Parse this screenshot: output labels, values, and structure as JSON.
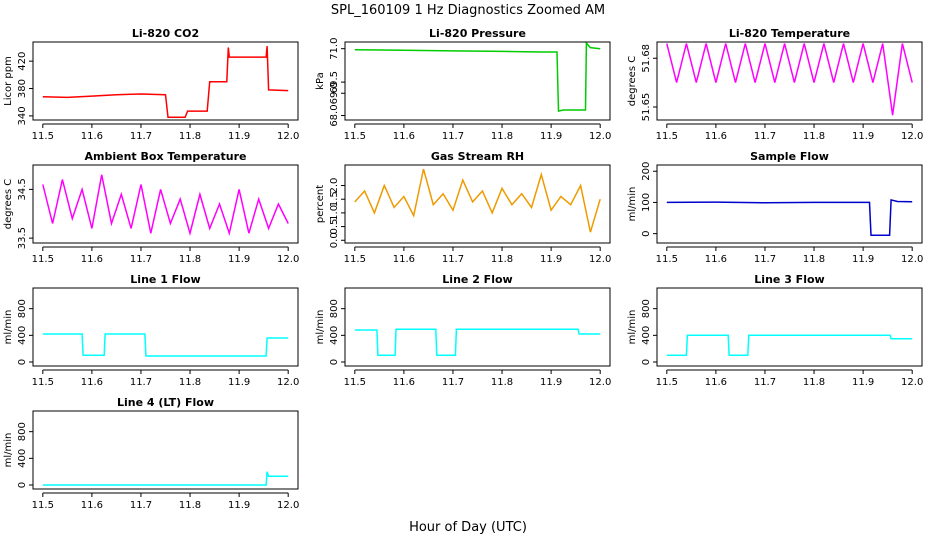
{
  "title": "SPL_160109  1 Hz Diagnostics Zoomed AM",
  "xlabel": "Hour of Day (UTC)",
  "chart_data": [
    {
      "type": "line",
      "title": "Li-820 CO2",
      "ylabel": "Licor ppm",
      "xlim": [
        11.48,
        12.02
      ],
      "xticks": [
        11.5,
        11.6,
        11.7,
        11.8,
        11.9,
        {
          "value": 12,
          "label": "12.0"
        }
      ],
      "ylim": [
        334,
        448
      ],
      "yticks": [
        340,
        380,
        420
      ],
      "series": [
        {
          "color": "#ff0000",
          "x": [
            11.5,
            11.55,
            11.6,
            11.65,
            11.7,
            11.75,
            11.755,
            11.79,
            11.795,
            11.835,
            11.84,
            11.875,
            11.878,
            11.88,
            11.955,
            11.957,
            11.96,
            12.0
          ],
          "values": [
            368,
            367,
            369,
            371,
            372,
            371,
            338,
            338,
            347,
            347,
            390,
            390,
            440,
            426,
            426,
            442,
            378,
            377
          ]
        }
      ]
    },
    {
      "type": "line",
      "title": "Li-820 Pressure",
      "ylabel": "kPa",
      "xlim": [
        11.48,
        12.02
      ],
      "xticks": [
        11.5,
        11.6,
        11.7,
        11.8,
        11.9,
        {
          "value": 12,
          "label": "12.0"
        }
      ],
      "ylim": [
        67.8,
        71.3
      ],
      "yticks": [
        {
          "value": 68,
          "label": "68.0"
        },
        {
          "value": 69,
          "label": "69.0"
        },
        69.5,
        {
          "value": 71,
          "label": "71.0"
        }
      ],
      "series": [
        {
          "color": "#00cc00",
          "x": [
            11.5,
            11.6,
            11.7,
            11.8,
            11.88,
            11.912,
            11.915,
            11.925,
            11.97,
            11.972,
            11.98,
            12.0
          ],
          "values": [
            70.95,
            70.93,
            70.9,
            70.88,
            70.85,
            70.85,
            68.2,
            68.25,
            68.25,
            71.25,
            71.05,
            71.0
          ]
        }
      ]
    },
    {
      "type": "line",
      "title": "Li-820 Temperature",
      "ylabel": "degrees C",
      "xlim": [
        11.48,
        12.02
      ],
      "xticks": [
        11.5,
        11.6,
        11.7,
        11.8,
        11.9,
        {
          "value": 12,
          "label": "12.0"
        }
      ],
      "ylim": [
        51.642,
        51.69
      ],
      "yticks": [
        51.65,
        51.68
      ],
      "series": [
        {
          "color": "#ff00ff",
          "x": [
            11.5,
            11.52,
            11.54,
            11.56,
            11.58,
            11.6,
            11.62,
            11.64,
            11.66,
            11.68,
            11.7,
            11.72,
            11.74,
            11.76,
            11.78,
            11.8,
            11.82,
            11.84,
            11.86,
            11.88,
            11.9,
            11.92,
            11.94,
            11.96,
            11.98,
            12.0
          ],
          "values": [
            51.689,
            51.665,
            51.689,
            51.665,
            51.689,
            51.665,
            51.689,
            51.665,
            51.689,
            51.665,
            51.689,
            51.665,
            51.689,
            51.665,
            51.689,
            51.665,
            51.689,
            51.665,
            51.689,
            51.665,
            51.689,
            51.665,
            51.689,
            51.645,
            51.689,
            51.665
          ]
        }
      ]
    },
    {
      "type": "line",
      "title": "Ambient Box Temperature",
      "ylabel": "degrees C",
      "xlim": [
        11.48,
        12.02
      ],
      "xticks": [
        11.5,
        11.6,
        11.7,
        11.8,
        11.9,
        {
          "value": 12,
          "label": "12.0"
        }
      ],
      "ylim": [
        33.4,
        35.0
      ],
      "yticks": [
        33.5,
        34.5
      ],
      "series": [
        {
          "color": "#ff00ff",
          "x": [
            11.5,
            11.52,
            11.54,
            11.56,
            11.58,
            11.6,
            11.62,
            11.64,
            11.66,
            11.68,
            11.7,
            11.72,
            11.74,
            11.76,
            11.78,
            11.8,
            11.82,
            11.84,
            11.86,
            11.88,
            11.9,
            11.92,
            11.94,
            11.96,
            11.98,
            12.0
          ],
          "values": [
            34.6,
            33.8,
            34.7,
            33.9,
            34.5,
            33.7,
            34.8,
            33.8,
            34.4,
            33.7,
            34.6,
            33.6,
            34.5,
            33.8,
            34.3,
            33.6,
            34.4,
            33.7,
            34.2,
            33.6,
            34.5,
            33.6,
            34.3,
            33.7,
            34.2,
            33.8
          ]
        }
      ]
    },
    {
      "type": "line",
      "title": "Gas Stream RH",
      "ylabel": "percent",
      "xlim": [
        11.48,
        12.02
      ],
      "xticks": [
        11.5,
        11.6,
        11.7,
        11.8,
        11.9,
        {
          "value": 12,
          "label": "12.0"
        }
      ],
      "ylim": [
        -0.1,
        2.75
      ],
      "yticks": [
        {
          "value": 0,
          "label": "0.0"
        },
        0.5,
        {
          "value": 1,
          "label": "1.0"
        },
        1.5,
        {
          "value": 2,
          "label": "2.0"
        }
      ],
      "series": [
        {
          "color": "#ee9a00",
          "x": [
            11.5,
            11.52,
            11.54,
            11.56,
            11.58,
            11.6,
            11.62,
            11.64,
            11.66,
            11.68,
            11.7,
            11.72,
            11.74,
            11.76,
            11.78,
            11.8,
            11.82,
            11.84,
            11.86,
            11.88,
            11.9,
            11.92,
            11.94,
            11.96,
            11.98,
            12.0
          ],
          "values": [
            1.4,
            1.8,
            1.0,
            2.0,
            1.2,
            1.6,
            0.9,
            2.6,
            1.3,
            1.7,
            1.1,
            2.2,
            1.4,
            1.8,
            1.0,
            1.9,
            1.3,
            1.7,
            1.2,
            2.4,
            1.1,
            1.6,
            1.3,
            2.0,
            0.3,
            1.5
          ]
        }
      ]
    },
    {
      "type": "line",
      "title": "Sample Flow",
      "ylabel": "ml/min",
      "xlim": [
        11.48,
        12.02
      ],
      "xticks": [
        11.5,
        11.6,
        11.7,
        11.8,
        11.9,
        {
          "value": 12,
          "label": "12.0"
        }
      ],
      "ylim": [
        -30,
        220
      ],
      "yticks": [
        0,
        100,
        200
      ],
      "series": [
        {
          "color": "#0000cc",
          "x": [
            11.5,
            11.6,
            11.7,
            11.8,
            11.913,
            11.916,
            11.954,
            11.957,
            11.97,
            12.0
          ],
          "values": [
            100,
            101,
            99,
            100,
            100,
            -5,
            -5,
            108,
            103,
            102
          ]
        }
      ]
    },
    {
      "type": "line",
      "title": "Line 1 Flow",
      "ylabel": "ml/min",
      "xlim": [
        11.48,
        12.02
      ],
      "xticks": [
        11.5,
        11.6,
        11.7,
        11.8,
        11.9,
        {
          "value": 12,
          "label": "12.0"
        }
      ],
      "ylim": [
        -60,
        1110
      ],
      "yticks": [
        0,
        400,
        800
      ],
      "series": [
        {
          "color": "#00ffff",
          "x": [
            11.5,
            11.58,
            11.582,
            11.625,
            11.627,
            11.708,
            11.71,
            11.955,
            11.957,
            12.0
          ],
          "values": [
            420,
            420,
            100,
            100,
            420,
            420,
            90,
            90,
            360,
            360
          ]
        }
      ]
    },
    {
      "type": "line",
      "title": "Line 2 Flow",
      "ylabel": "ml/min",
      "xlim": [
        11.48,
        12.02
      ],
      "xticks": [
        11.5,
        11.6,
        11.7,
        11.8,
        11.9,
        {
          "value": 12,
          "label": "12.0"
        }
      ],
      "ylim": [
        -60,
        1110
      ],
      "yticks": [
        0,
        400,
        800
      ],
      "series": [
        {
          "color": "#00ffff",
          "x": [
            11.5,
            11.545,
            11.547,
            11.582,
            11.584,
            11.665,
            11.667,
            11.705,
            11.707,
            11.955,
            11.957,
            12.0
          ],
          "values": [
            480,
            480,
            100,
            100,
            490,
            490,
            100,
            100,
            490,
            490,
            420,
            420
          ]
        }
      ]
    },
    {
      "type": "line",
      "title": "Line 3 Flow",
      "ylabel": "ml/min",
      "xlim": [
        11.48,
        12.02
      ],
      "xticks": [
        11.5,
        11.6,
        11.7,
        11.8,
        11.9,
        {
          "value": 12,
          "label": "12.0"
        }
      ],
      "ylim": [
        -60,
        1110
      ],
      "yticks": [
        0,
        400,
        800
      ],
      "series": [
        {
          "color": "#00ffff",
          "x": [
            11.5,
            11.54,
            11.542,
            11.625,
            11.627,
            11.665,
            11.667,
            11.955,
            11.957,
            12.0
          ],
          "values": [
            100,
            100,
            400,
            400,
            100,
            100,
            400,
            400,
            350,
            350
          ]
        }
      ]
    },
    {
      "type": "line",
      "title": "Line 4 (LT) Flow",
      "ylabel": "ml/min",
      "xlim": [
        11.48,
        12.02
      ],
      "xticks": [
        11.5,
        11.6,
        11.7,
        11.8,
        11.9,
        {
          "value": 12,
          "label": "12.0"
        }
      ],
      "ylim": [
        -60,
        1110
      ],
      "yticks": [
        0,
        400,
        800
      ],
      "series": [
        {
          "color": "#00ffff",
          "x": [
            11.5,
            11.955,
            11.957,
            11.96,
            12.0
          ],
          "values": [
            0,
            0,
            200,
            130,
            130
          ]
        }
      ]
    }
  ]
}
